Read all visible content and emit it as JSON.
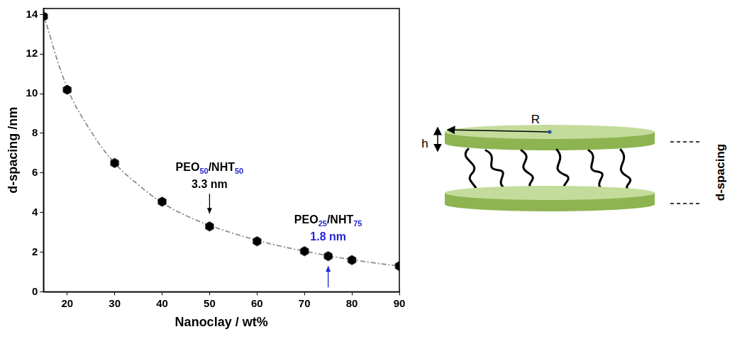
{
  "chart_data": {
    "type": "scatter",
    "x_label": "Nanoclay / wt%",
    "y_label": "d-spacing /nm",
    "xlim": [
      15,
      90
    ],
    "xticks": [
      20,
      30,
      40,
      50,
      60,
      70,
      80,
      90
    ],
    "ylim": [
      0,
      14.3
    ],
    "yticks": [
      0,
      2,
      4,
      6,
      8,
      10,
      12,
      14
    ],
    "grid": false,
    "series": [
      {
        "type": "scatter",
        "color": "#000000",
        "marker": "hexagon",
        "x": [
          15,
          20,
          30,
          40,
          50,
          60,
          70,
          75,
          80,
          90
        ],
        "values": [
          13.9,
          10.2,
          6.5,
          4.55,
          3.3,
          2.55,
          2.05,
          1.8,
          1.6,
          1.3
        ]
      },
      {
        "type": "line",
        "color": "#808080",
        "line_style": "dashdot",
        "x": [
          15,
          20,
          25,
          30,
          35,
          40,
          45,
          50,
          55,
          60,
          65,
          70,
          75,
          80,
          85,
          90
        ],
        "values": [
          14.0,
          10.3,
          8.1,
          6.5,
          5.4,
          4.5,
          3.85,
          3.35,
          2.95,
          2.6,
          2.3,
          2.05,
          1.82,
          1.62,
          1.45,
          1.3
        ]
      }
    ],
    "annotations": [
      {
        "x": 50,
        "y": 3.3,
        "label": "PEO50/NHT50",
        "value_label": "3.3 nm",
        "color": "#000000",
        "arrow": "down"
      },
      {
        "x": 75,
        "y": 1.8,
        "label": "PEO25/NHT75",
        "value_label": "1.8 nm",
        "color": "#2424d0",
        "arrow": "up"
      }
    ]
  },
  "diagram": {
    "radius_label": "R",
    "thickness_label": "h",
    "spacing_label": "d-spacing"
  }
}
